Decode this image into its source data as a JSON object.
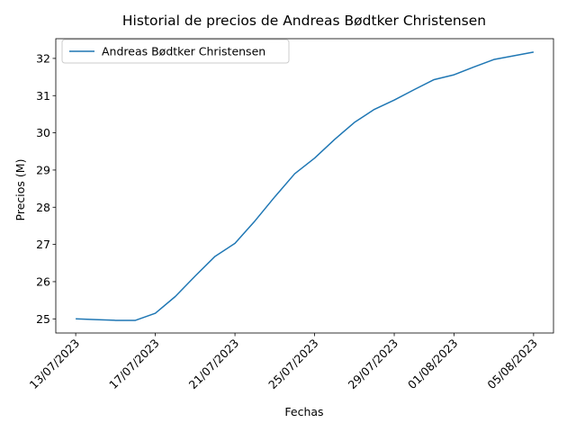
{
  "chart_data": {
    "type": "line",
    "title": "Historial de precios de Andreas Bødtker Christensen",
    "xlabel": "Fechas",
    "ylabel": "Precios (M)",
    "x_tick_labels": [
      "13/07/2023",
      "17/07/2023",
      "21/07/2023",
      "25/07/2023",
      "29/07/2023",
      "01/08/2023",
      "05/08/2023"
    ],
    "y_ticks": [
      25,
      26,
      27,
      28,
      29,
      30,
      31,
      32
    ],
    "ylim": [
      24.62,
      32.53
    ],
    "xlim": [
      "2023-07-12",
      "2023-08-06"
    ],
    "grid": false,
    "legend_position": "upper left",
    "series": [
      {
        "name": "Andreas Bødtker Christensen",
        "color": "#1f77b4",
        "points": [
          {
            "x": "2023-07-13",
            "y": 25.0
          },
          {
            "x": "2023-07-14",
            "y": 24.98
          },
          {
            "x": "2023-07-15",
            "y": 24.96
          },
          {
            "x": "2023-07-16",
            "y": 24.96
          },
          {
            "x": "2023-07-17",
            "y": 25.15
          },
          {
            "x": "2023-07-18",
            "y": 25.6
          },
          {
            "x": "2023-07-19",
            "y": 26.15
          },
          {
            "x": "2023-07-20",
            "y": 26.68
          },
          {
            "x": "2023-07-21",
            "y": 27.03
          },
          {
            "x": "2023-07-22",
            "y": 27.63
          },
          {
            "x": "2023-07-23",
            "y": 28.28
          },
          {
            "x": "2023-07-24",
            "y": 28.9
          },
          {
            "x": "2023-07-25",
            "y": 29.32
          },
          {
            "x": "2023-07-26",
            "y": 29.82
          },
          {
            "x": "2023-07-27",
            "y": 30.28
          },
          {
            "x": "2023-07-28",
            "y": 30.63
          },
          {
            "x": "2023-07-29",
            "y": 30.88
          },
          {
            "x": "2023-07-30",
            "y": 31.16
          },
          {
            "x": "2023-07-31",
            "y": 31.43
          },
          {
            "x": "2023-08-01",
            "y": 31.56
          },
          {
            "x": "2023-08-02",
            "y": 31.77
          },
          {
            "x": "2023-08-03",
            "y": 31.97
          },
          {
            "x": "2023-08-04",
            "y": 32.07
          },
          {
            "x": "2023-08-05",
            "y": 32.17
          }
        ]
      }
    ]
  }
}
